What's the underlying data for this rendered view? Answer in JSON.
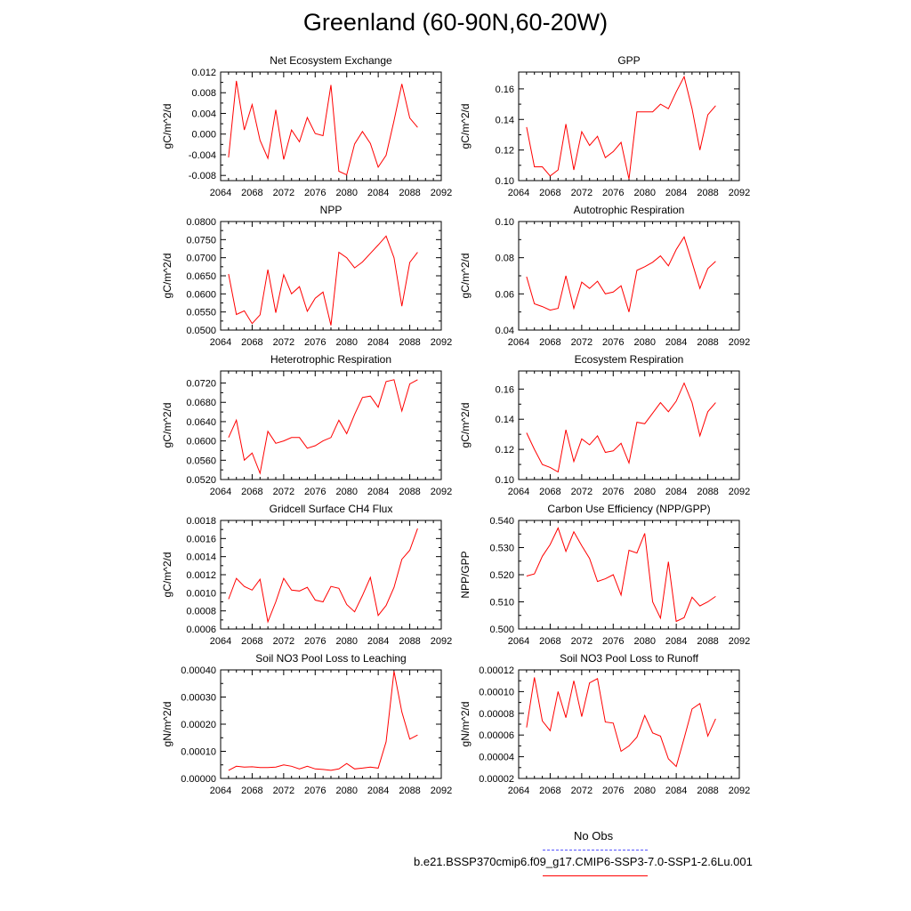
{
  "title": "Greenland (60-90N,60-20W)",
  "colors": {
    "model": "#ff0000",
    "obs": "#5555ff",
    "axis": "#000000"
  },
  "legend": {
    "obs_label": "No Obs",
    "run_label": "b.e21.BSSP370cmip6.f09_g17.CMIP6-SSP3-7.0-SSP1-2.6Lu.001"
  },
  "chart_data": [
    {
      "type": "line",
      "title": "Net Ecosystem Exchange",
      "ylabel": "gC/m^2/d",
      "xlim": [
        2064,
        2092
      ],
      "xticks": [
        "2064",
        "2068",
        "2072",
        "2076",
        "2080",
        "2084",
        "2088",
        "2092"
      ],
      "ylim": [
        -0.009,
        0.012
      ],
      "yticks": [
        "-0.008",
        "-0.004",
        "0.000",
        "0.004",
        "0.008",
        "0.012"
      ],
      "x": [
        2065,
        2066,
        2067,
        2068,
        2069,
        2070,
        2071,
        2072,
        2073,
        2074,
        2075,
        2076,
        2077,
        2078,
        2079,
        2080,
        2081,
        2082,
        2083,
        2084,
        2085,
        2086,
        2087,
        2088,
        2089
      ],
      "series": [
        {
          "values": [
            -0.0045,
            0.0103,
            0.0008,
            0.0057,
            -0.0012,
            -0.0047,
            0.0047,
            -0.0049,
            0.0008,
            -0.0015,
            0.0032,
            0.0001,
            -0.0003,
            0.0095,
            -0.0072,
            -0.0079,
            -0.0019,
            0.0005,
            -0.0018,
            -0.0064,
            -0.0041,
            0.0026,
            0.0097,
            0.0031,
            0.0013
          ]
        }
      ]
    },
    {
      "type": "line",
      "title": "GPP",
      "ylabel": "gC/m^2/d",
      "xlim": [
        2064,
        2092
      ],
      "xticks": [
        "2064",
        "2068",
        "2072",
        "2076",
        "2080",
        "2084",
        "2088",
        "2092"
      ],
      "ylim": [
        0.1,
        0.171
      ],
      "yticks": [
        "0.10",
        "0.12",
        "0.14",
        "0.16"
      ],
      "x": [
        2065,
        2066,
        2067,
        2068,
        2069,
        2070,
        2071,
        2072,
        2073,
        2074,
        2075,
        2076,
        2077,
        2078,
        2079,
        2080,
        2081,
        2082,
        2083,
        2084,
        2085,
        2086,
        2087,
        2088,
        2089
      ],
      "series": [
        {
          "values": [
            0.135,
            0.109,
            0.109,
            0.103,
            0.107,
            0.137,
            0.107,
            0.132,
            0.123,
            0.129,
            0.115,
            0.119,
            0.125,
            0.101,
            0.145,
            0.145,
            0.145,
            0.15,
            0.147,
            0.158,
            0.168,
            0.147,
            0.12,
            0.143,
            0.149
          ]
        }
      ]
    },
    {
      "type": "line",
      "title": "NPP",
      "ylabel": "gC/m^2/d",
      "xlim": [
        2064,
        2092
      ],
      "xticks": [
        "2064",
        "2068",
        "2072",
        "2076",
        "2080",
        "2084",
        "2088",
        "2092"
      ],
      "ylim": [
        0.05,
        0.08
      ],
      "yticks": [
        "0.0500",
        "0.0550",
        "0.0600",
        "0.0650",
        "0.0700",
        "0.0750",
        "0.0800"
      ],
      "x": [
        2065,
        2066,
        2067,
        2068,
        2069,
        2070,
        2071,
        2072,
        2073,
        2074,
        2075,
        2076,
        2077,
        2078,
        2079,
        2080,
        2081,
        2082,
        2083,
        2084,
        2085,
        2086,
        2087,
        2088,
        2089
      ],
      "series": [
        {
          "values": [
            0.0655,
            0.0543,
            0.0553,
            0.0518,
            0.0542,
            0.0667,
            0.0548,
            0.0653,
            0.06,
            0.062,
            0.0552,
            0.0588,
            0.0605,
            0.0513,
            0.0715,
            0.07,
            0.0672,
            0.0688,
            0.0712,
            0.0735,
            0.076,
            0.07,
            0.0566,
            0.0687,
            0.0715
          ]
        }
      ]
    },
    {
      "type": "line",
      "title": "Autotrophic Respiration",
      "ylabel": "gC/m^2/d",
      "xlim": [
        2064,
        2092
      ],
      "xticks": [
        "2064",
        "2068",
        "2072",
        "2076",
        "2080",
        "2084",
        "2088",
        "2092"
      ],
      "ylim": [
        0.04,
        0.1
      ],
      "yticks": [
        "0.04",
        "0.06",
        "0.08",
        "0.10"
      ],
      "x": [
        2065,
        2066,
        2067,
        2068,
        2069,
        2070,
        2071,
        2072,
        2073,
        2074,
        2075,
        2076,
        2077,
        2078,
        2079,
        2080,
        2081,
        2082,
        2083,
        2084,
        2085,
        2086,
        2087,
        2088,
        2089
      ],
      "series": [
        {
          "values": [
            0.0695,
            0.0545,
            0.053,
            0.051,
            0.052,
            0.07,
            0.052,
            0.0665,
            0.063,
            0.067,
            0.06,
            0.061,
            0.0645,
            0.05,
            0.073,
            0.075,
            0.0775,
            0.081,
            0.0755,
            0.0845,
            0.0915,
            0.0775,
            0.063,
            0.074,
            0.078
          ]
        }
      ]
    },
    {
      "type": "line",
      "title": "Heterotrophic Respiration",
      "ylabel": "gC/m^2/d",
      "xlim": [
        2064,
        2092
      ],
      "xticks": [
        "2064",
        "2068",
        "2072",
        "2076",
        "2080",
        "2084",
        "2088",
        "2092"
      ],
      "ylim": [
        0.052,
        0.0745
      ],
      "yticks": [
        "0.0520",
        "0.0560",
        "0.0600",
        "0.0640",
        "0.0680",
        "0.0720"
      ],
      "x": [
        2065,
        2066,
        2067,
        2068,
        2069,
        2070,
        2071,
        2072,
        2073,
        2074,
        2075,
        2076,
        2077,
        2078,
        2079,
        2080,
        2081,
        2082,
        2083,
        2084,
        2085,
        2086,
        2087,
        2088,
        2089
      ],
      "series": [
        {
          "values": [
            0.0607,
            0.0643,
            0.056,
            0.0575,
            0.0533,
            0.062,
            0.0595,
            0.06,
            0.0607,
            0.0607,
            0.0585,
            0.059,
            0.06,
            0.0607,
            0.0643,
            0.0615,
            0.0655,
            0.069,
            0.0693,
            0.067,
            0.0723,
            0.0727,
            0.0662,
            0.0718,
            0.0727
          ]
        }
      ]
    },
    {
      "type": "line",
      "title": "Ecosystem Respiration",
      "ylabel": "gC/m^2/d",
      "xlim": [
        2064,
        2092
      ],
      "xticks": [
        "2064",
        "2068",
        "2072",
        "2076",
        "2080",
        "2084",
        "2088",
        "2092"
      ],
      "ylim": [
        0.1,
        0.172
      ],
      "yticks": [
        "0.10",
        "0.12",
        "0.14",
        "0.16"
      ],
      "x": [
        2065,
        2066,
        2067,
        2068,
        2069,
        2070,
        2071,
        2072,
        2073,
        2074,
        2075,
        2076,
        2077,
        2078,
        2079,
        2080,
        2081,
        2082,
        2083,
        2084,
        2085,
        2086,
        2087,
        2088,
        2089
      ],
      "series": [
        {
          "values": [
            0.131,
            0.12,
            0.11,
            0.108,
            0.105,
            0.133,
            0.112,
            0.127,
            0.123,
            0.129,
            0.118,
            0.119,
            0.124,
            0.111,
            0.138,
            0.137,
            0.144,
            0.151,
            0.145,
            0.152,
            0.164,
            0.151,
            0.129,
            0.145,
            0.151
          ]
        }
      ]
    },
    {
      "type": "line",
      "title": "Gridcell Surface CH4 Flux",
      "ylabel": "gC/m^2/d",
      "xlim": [
        2064,
        2092
      ],
      "xticks": [
        "2064",
        "2068",
        "2072",
        "2076",
        "2080",
        "2084",
        "2088",
        "2092"
      ],
      "ylim": [
        0.0006,
        0.0018
      ],
      "yticks": [
        "0.0006",
        "0.0008",
        "0.0010",
        "0.0012",
        "0.0014",
        "0.0016",
        "0.0018"
      ],
      "x": [
        2065,
        2066,
        2067,
        2068,
        2069,
        2070,
        2071,
        2072,
        2073,
        2074,
        2075,
        2076,
        2077,
        2078,
        2079,
        2080,
        2081,
        2082,
        2083,
        2084,
        2085,
        2086,
        2087,
        2088,
        2089
      ],
      "series": [
        {
          "values": [
            0.00093,
            0.00116,
            0.00107,
            0.00103,
            0.00115,
            0.00068,
            0.0009,
            0.00116,
            0.00103,
            0.00102,
            0.00106,
            0.00092,
            0.0009,
            0.00107,
            0.00105,
            0.00087,
            0.00079,
            0.00097,
            0.00117,
            0.00075,
            0.00086,
            0.00106,
            0.00137,
            0.00147,
            0.00171
          ]
        }
      ]
    },
    {
      "type": "line",
      "title": "Carbon Use Efficiency (NPP/GPP)",
      "ylabel": "NPP/GPP",
      "xlim": [
        2064,
        2092
      ],
      "xticks": [
        "2064",
        "2068",
        "2072",
        "2076",
        "2080",
        "2084",
        "2088",
        "2092"
      ],
      "ylim": [
        0.5,
        0.54
      ],
      "yticks": [
        "0.500",
        "0.510",
        "0.520",
        "0.530",
        "0.540"
      ],
      "x": [
        2065,
        2066,
        2067,
        2068,
        2069,
        2070,
        2071,
        2072,
        2073,
        2074,
        2075,
        2076,
        2077,
        2078,
        2079,
        2080,
        2081,
        2082,
        2083,
        2084,
        2085,
        2086,
        2087,
        2088,
        2089
      ],
      "series": [
        {
          "values": [
            0.5195,
            0.5203,
            0.5268,
            0.5311,
            0.5372,
            0.5286,
            0.5358,
            0.5307,
            0.526,
            0.5175,
            0.5185,
            0.52,
            0.5125,
            0.529,
            0.528,
            0.5352,
            0.51,
            0.504,
            0.5248,
            0.5028,
            0.5042,
            0.5117,
            0.5085,
            0.51,
            0.512
          ]
        }
      ]
    },
    {
      "type": "line",
      "title": "Soil NO3 Pool Loss to Leaching",
      "ylabel": "gN/m^2/d",
      "xlim": [
        2064,
        2092
      ],
      "xticks": [
        "2064",
        "2068",
        "2072",
        "2076",
        "2080",
        "2084",
        "2088",
        "2092"
      ],
      "ylim": [
        0,
        0.0004
      ],
      "yticks": [
        "0.00000",
        "0.00010",
        "0.00020",
        "0.00030",
        "0.00040"
      ],
      "x": [
        2065,
        2066,
        2067,
        2068,
        2069,
        2070,
        2071,
        2072,
        2073,
        2074,
        2075,
        2076,
        2077,
        2078,
        2079,
        2080,
        2081,
        2082,
        2083,
        2084,
        2085,
        2086,
        2087,
        2088,
        2089
      ],
      "series": [
        {
          "values": [
            3e-05,
            4.5e-05,
            4.2e-05,
            4.3e-05,
            4e-05,
            4e-05,
            4.2e-05,
            5e-05,
            4.5e-05,
            3.5e-05,
            4.5e-05,
            3.5e-05,
            3.3e-05,
            3e-05,
            3.5e-05,
            5.5e-05,
            3.5e-05,
            3.8e-05,
            4.2e-05,
            3.8e-05,
            0.000135,
            0.000395,
            0.000245,
            0.000145,
            0.00016
          ]
        }
      ]
    },
    {
      "type": "line",
      "title": "Soil NO3 Pool Loss to Runoff",
      "ylabel": "gN/m^2/d",
      "xlim": [
        2064,
        2092
      ],
      "xticks": [
        "2064",
        "2068",
        "2072",
        "2076",
        "2080",
        "2084",
        "2088",
        "2092"
      ],
      "ylim": [
        2e-05,
        0.00012
      ],
      "yticks": [
        "0.00002",
        "0.00004",
        "0.00006",
        "0.00008",
        "0.00010",
        "0.00012"
      ],
      "x": [
        2065,
        2066,
        2067,
        2068,
        2069,
        2070,
        2071,
        2072,
        2073,
        2074,
        2075,
        2076,
        2077,
        2078,
        2079,
        2080,
        2081,
        2082,
        2083,
        2084,
        2085,
        2086,
        2087,
        2088,
        2089
      ],
      "series": [
        {
          "values": [
            6.7e-05,
            0.000113,
            7.3e-05,
            6.4e-05,
            0.0001,
            7.6e-05,
            0.00011,
            7.7e-05,
            0.000108,
            0.000112,
            7.2e-05,
            7.1e-05,
            4.5e-05,
            5e-05,
            5.8e-05,
            7.8e-05,
            6.2e-05,
            5.9e-05,
            3.8e-05,
            3.1e-05,
            5.7e-05,
            8.4e-05,
            8.9e-05,
            5.9e-05,
            7.5e-05
          ]
        }
      ]
    }
  ]
}
